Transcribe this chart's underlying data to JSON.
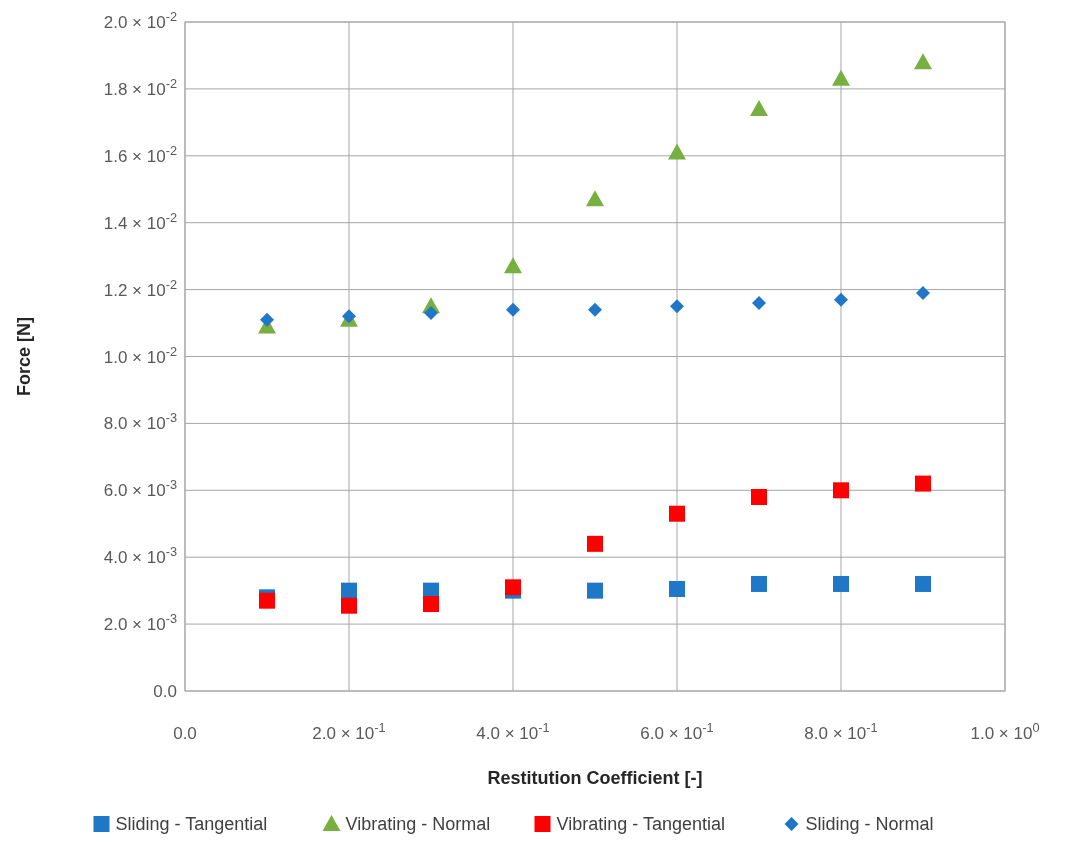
{
  "chart_data": {
    "type": "scatter",
    "xlabel": "Restitution Coefficient [-]",
    "ylabel": "Force  [N]",
    "x": [
      0.1,
      0.2,
      0.3,
      0.4,
      0.5,
      0.6,
      0.7,
      0.8,
      0.9
    ],
    "xlim": [
      0,
      1
    ],
    "ylim": [
      0,
      0.02
    ],
    "xticks": [
      {
        "value": 0,
        "label": "0.0"
      },
      {
        "value": 0.2,
        "label": "2.0 × 10$^{-1}$"
      },
      {
        "value": 0.4,
        "label": "4.0 × 10$^{-1}$"
      },
      {
        "value": 0.6,
        "label": "6.0 × 10$^{-1}$"
      },
      {
        "value": 0.8,
        "label": "8.0 × 10$^{-1}$"
      },
      {
        "value": 1,
        "label": "1.0 × 10$^{0}$"
      }
    ],
    "yticks": [
      {
        "value": 0,
        "label": "0.0"
      },
      {
        "value": 0.002,
        "label": "2.0 × 10$^{-3}$"
      },
      {
        "value": 0.004,
        "label": "4.0 × 10$^{-3}$"
      },
      {
        "value": 0.006,
        "label": "6.0 × 10$^{-3}$"
      },
      {
        "value": 0.008,
        "label": "8.0 × 10$^{-3}$"
      },
      {
        "value": 0.01,
        "label": "1.0 × 10$^{-2}$"
      },
      {
        "value": 0.012,
        "label": "1.2 × 10$^{-2}$"
      },
      {
        "value": 0.014,
        "label": "1.4 × 10$^{-2}$"
      },
      {
        "value": 0.016,
        "label": "1.6 × 10$^{-2}$"
      },
      {
        "value": 0.018,
        "label": "1.8 × 10$^{-2}$"
      },
      {
        "value": 0.02,
        "label": "2.0 × 10$^{-2}$"
      }
    ],
    "grid": true,
    "legend": "bottom",
    "series": [
      {
        "name": "Sliding - Tangential",
        "color": "#1f77c8",
        "marker": "square",
        "values": [
          0.0028,
          0.003,
          0.003,
          0.003,
          0.003,
          0.00305,
          0.0032,
          0.0032,
          0.0032
        ]
      },
      {
        "name": "Vibrating - Normal",
        "color": "#77b041",
        "marker": "triangle",
        "values": [
          0.0109,
          0.0111,
          0.0115,
          0.0127,
          0.0147,
          0.0161,
          0.0174,
          0.0183,
          0.0188
        ]
      },
      {
        "name": "Vibrating - Tangential",
        "color": "#ff0000",
        "marker": "square",
        "values": [
          0.0027,
          0.00255,
          0.0026,
          0.0031,
          0.0044,
          0.0053,
          0.0058,
          0.006,
          0.0062
        ]
      },
      {
        "name": "Sliding - Normal",
        "color": "#1f77c8",
        "marker": "diamond",
        "values": [
          0.0111,
          0.0112,
          0.0113,
          0.0114,
          0.0114,
          0.0115,
          0.0116,
          0.0117,
          0.0119
        ]
      }
    ]
  }
}
